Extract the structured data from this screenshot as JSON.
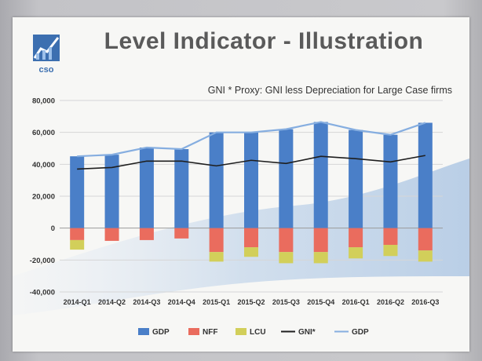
{
  "slide": {
    "title": "Level Indicator - Illustration",
    "logo_text": "cso"
  },
  "colors": {
    "gdp_bar": "#4a7fc8",
    "nff": "#ea6c5e",
    "lcu": "#d2cf5a",
    "gni": "#1e1e1e",
    "gdp_line": "#86aee0",
    "grid": "#d6d6d6"
  },
  "chart_data": {
    "type": "bar",
    "title": "GNI * Proxy: GNI less Depreciation for Large Case firms",
    "xlabel": "",
    "ylabel": "",
    "ylim": [
      -40000,
      80000
    ],
    "yticks": [
      80000,
      60000,
      40000,
      20000,
      0,
      -20000,
      -40000
    ],
    "ytick_labels": [
      "80,000",
      "60,000",
      "40,000",
      "20,000",
      "0",
      "-20,000",
      "-40,000"
    ],
    "grid": true,
    "legend": "bottom",
    "categories": [
      "2014-Q1",
      "2014-Q2",
      "2014-Q3",
      "2014-Q4",
      "2015-Q1",
      "2015-Q2",
      "2015-Q3",
      "2015-Q4",
      "2016-Q1",
      "2016-Q2",
      "2016-Q3"
    ],
    "series": [
      {
        "name": "GDP",
        "kind": "bar",
        "values": [
          45000,
          46000,
          50500,
          49500,
          60000,
          60000,
          62000,
          66500,
          61500,
          58500,
          66000
        ]
      },
      {
        "name": "NFF",
        "kind": "bar",
        "values": [
          -7500,
          -8000,
          -7500,
          -6500,
          -15000,
          -12000,
          -15000,
          -15000,
          -12000,
          -10500,
          -14000
        ]
      },
      {
        "name": "LCU",
        "kind": "bar",
        "values": [
          -6000,
          0,
          0,
          0,
          -6000,
          -6000,
          -7000,
          -7000,
          -7000,
          -7000,
          -7000
        ]
      },
      {
        "name": "GNI*",
        "kind": "line",
        "values": [
          37000,
          38000,
          42000,
          42000,
          39000,
          42500,
          40500,
          45000,
          43500,
          41500,
          45500
        ]
      },
      {
        "name": "GDP",
        "kind": "line",
        "values": [
          45000,
          46000,
          50500,
          49500,
          60000,
          60000,
          62000,
          66500,
          61500,
          58500,
          66000
        ]
      }
    ]
  }
}
